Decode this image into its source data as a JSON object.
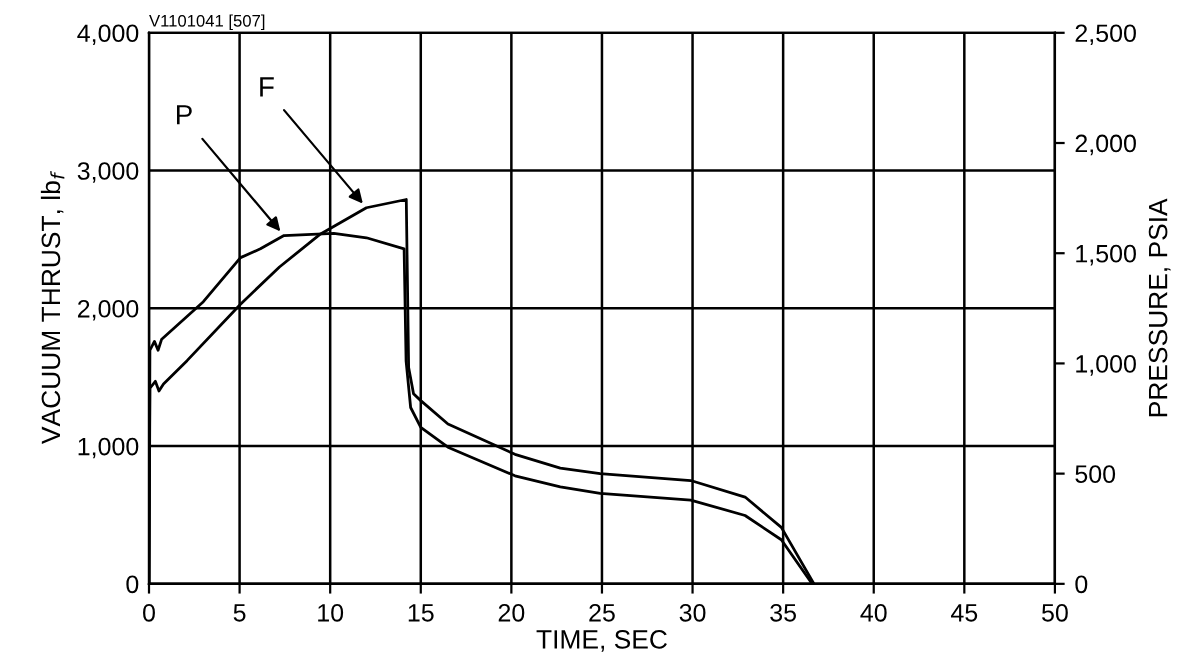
{
  "chart_data": {
    "type": "line",
    "xlabel": "TIME, SEC",
    "ylabel": "VACUUM THRUST, lb$_{f}$",
    "y2label": "PRESSURE, PSIA",
    "annotations": [
      "V1101041 [507]"
    ],
    "series": [
      {
        "name": "F",
        "color": "#000000",
        "axis": "y",
        "x": [
          0,
          0.05,
          0.35,
          0.55,
          0.8,
          2.1,
          5.05,
          7.2,
          9.47,
          12.0,
          14.2,
          14.33,
          14.6,
          15.0,
          16.5,
          20.2,
          22.7,
          24.9,
          29.9,
          32.9,
          34.9,
          36.7
        ],
        "values": [
          0,
          1420,
          1470,
          1400,
          1450,
          1620,
          2030,
          2300,
          2540,
          2730,
          2790,
          1570,
          1380,
          1330,
          1160,
          940,
          840,
          800,
          750,
          630,
          410,
          0
        ]
      },
      {
        "name": "P",
        "color": "#000000",
        "axis": "y2",
        "x": [
          0,
          0.05,
          0.3,
          0.5,
          0.7,
          3.0,
          5.05,
          6.15,
          7.45,
          10.2,
          12.0,
          14.08,
          14.19,
          14.44,
          15.0,
          16.5,
          20.2,
          22.7,
          24.9,
          29.9,
          32.9,
          34.9,
          36.6
        ],
        "values": [
          0,
          1060,
          1100,
          1060,
          1110,
          1280,
          1480,
          1520,
          1580,
          1590,
          1570,
          1520,
          1010,
          800,
          710,
          620,
          490,
          440,
          410,
          380,
          310,
          200,
          0
        ]
      }
    ],
    "xlim": [
      0,
      50
    ],
    "xticks": [
      0,
      5,
      10,
      15,
      20,
      25,
      30,
      35,
      40,
      45,
      50
    ],
    "ylim": [
      0,
      4000
    ],
    "yticks": [
      0,
      {
        "value": 1000,
        "label": "1,000"
      },
      {
        "value": 2000,
        "label": "2,000"
      },
      {
        "value": 3000,
        "label": "3,000"
      },
      {
        "value": 4000,
        "label": "4,000"
      }
    ],
    "y2lim": [
      0,
      2500
    ],
    "y2ticks": [
      0,
      500,
      {
        "value": 1000,
        "label": "1,000"
      },
      {
        "value": 1500,
        "label": "1,500"
      },
      {
        "value": 2000,
        "label": "2,000"
      },
      {
        "value": 2500,
        "label": "2,500"
      }
    ],
    "grid": true,
    "legend": false,
    "marker": "none",
    "line_style": "solid"
  }
}
